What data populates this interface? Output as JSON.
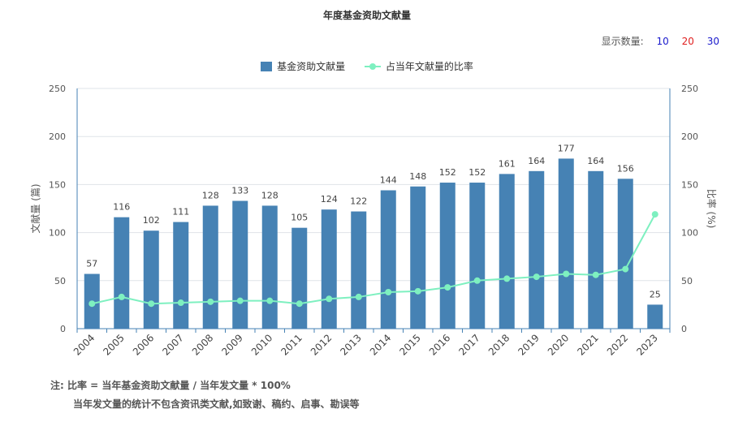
{
  "title": "年度基金资助文献量",
  "display_count": {
    "label": "显示数量:",
    "options": [
      "10",
      "20",
      "30"
    ],
    "colors": [
      "#1a1acc",
      "#e02020",
      "#1a1acc"
    ]
  },
  "notes": [
    "注:  比率 = 当年基金资助文献量 / 当年发文量 * 100%",
    "当年发文量的统计不包含资讯类文献,如致谢、稿约、启事、勘误等"
  ],
  "chart_data": {
    "type": "bar",
    "categories": [
      "2004",
      "2005",
      "2006",
      "2007",
      "2008",
      "2009",
      "2010",
      "2011",
      "2012",
      "2013",
      "2014",
      "2015",
      "2016",
      "2017",
      "2018",
      "2019",
      "2020",
      "2021",
      "2022",
      "2023"
    ],
    "series": [
      {
        "name": "基金资助文献量",
        "type": "bar",
        "color": "#4682b4",
        "values": [
          57,
          116,
          102,
          111,
          128,
          133,
          128,
          105,
          124,
          122,
          144,
          148,
          152,
          152,
          161,
          164,
          177,
          164,
          156,
          25
        ]
      },
      {
        "name": "占当年文献量的比率",
        "type": "line",
        "color": "#7ef0c0",
        "values": [
          26,
          33,
          26,
          27,
          28,
          29,
          29,
          26,
          31,
          33,
          38,
          39,
          43,
          50,
          52,
          54,
          57,
          56,
          62,
          119
        ]
      }
    ],
    "ylabel": "文献量 (篇)",
    "y2label": "比率 (%)",
    "ylim": [
      0,
      250
    ],
    "y2lim": [
      0,
      250
    ],
    "yticks": [
      0,
      50,
      100,
      150,
      200,
      250
    ],
    "y2ticks": [
      0,
      50,
      100,
      150,
      200,
      250
    ],
    "grid": true,
    "legend": "top-center"
  }
}
